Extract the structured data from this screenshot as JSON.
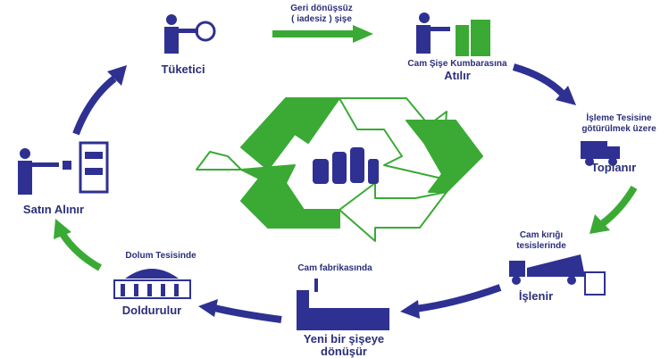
{
  "nodes": [
    {
      "note": [
        "Geri dönüşsüz",
        "( iadesiz ) şişe"
      ]
    },
    {
      "label": "Tüketici"
    },
    {
      "note": [
        "Cam Şişe Kumbarasına"
      ],
      "label": "Atılır"
    },
    {
      "note": [
        "İşleme Tesisine",
        "götürülmek üzere"
      ],
      "label": "Toplanır"
    },
    {
      "note": [
        "Cam kırığı",
        "tesislerinde"
      ],
      "label": "İşlenir"
    },
    {
      "note": [
        "Cam fabrikasında"
      ],
      "label": [
        "Yeni bir şişeye",
        "dönüşür"
      ]
    },
    {
      "note": [
        "Dolum Tesisinde"
      ],
      "label": "Doldurulur"
    },
    {
      "label": "Satın Alınır"
    }
  ]
}
